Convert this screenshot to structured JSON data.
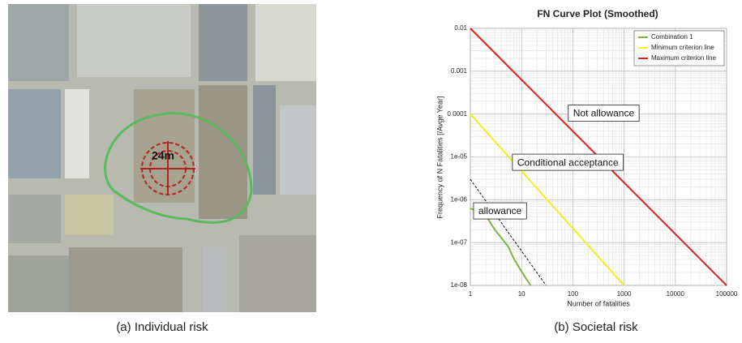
{
  "image": {
    "distance_label": "24m"
  },
  "captions": [
    "(a) Individual risk",
    "(b) Societal risk"
  ],
  "chart_data": {
    "type": "line",
    "title": "FN Curve Plot (Smoothed)",
    "x_label": "Number of fatalities",
    "y_label": "Frequency of N Fatalities [/Avge Year]",
    "xscale": "log",
    "yscale": "log",
    "grid": true,
    "legend": "upper right",
    "xlim": [
      1,
      100000
    ],
    "xticks": [
      1,
      10,
      100,
      1000,
      10000,
      100000
    ],
    "ylim": [
      1e-08,
      0.01
    ],
    "yticks": [
      0.01,
      0.001,
      0.0001,
      {
        "value": 1e-05,
        "label": "1e-05"
      },
      {
        "value": 1e-06,
        "label": "1e-06"
      },
      {
        "value": 1e-07,
        "label": "1e-07"
      },
      {
        "value": 1e-08,
        "label": "1e-08"
      }
    ],
    "series": [
      {
        "name": "Combination 1",
        "color": "#7cb342",
        "x": [
          1,
          1.6,
          2.2,
          3,
          4,
          5.5,
          7,
          9,
          12,
          15
        ],
        "values": [
          6.3e-07,
          5e-07,
          3.6e-07,
          2e-07,
          1.3e-07,
          8e-08,
          4.3e-08,
          2.6e-08,
          1.5e-08,
          1e-08
        ]
      },
      {
        "name": "Minimum criterion line",
        "color": "#f0f020",
        "x": [
          1,
          1000
        ],
        "values": [
          0.0001,
          1e-08
        ]
      },
      {
        "name": "Maximum criterion line",
        "color": "#e02020",
        "x": [
          1,
          100000
        ],
        "values": [
          0.01,
          1e-08
        ]
      }
    ],
    "reference_line": {
      "x": [
        1,
        30
      ],
      "values": [
        3e-06,
        1e-08
      ]
    },
    "annotations": [
      {
        "text": "Not allowance",
        "x": 400,
        "y": 0.000105
      },
      {
        "text": "Conditional acceptance",
        "x": 80,
        "y": 7.5e-06
      },
      {
        "text": "allowance",
        "x": 3.8,
        "y": 5.5e-07
      }
    ]
  }
}
